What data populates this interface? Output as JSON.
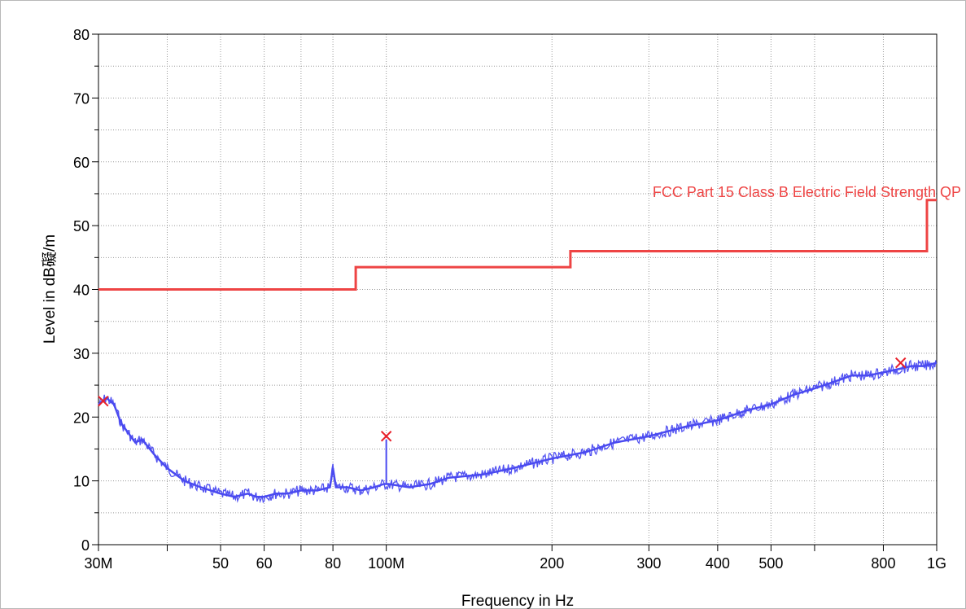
{
  "chart_data": {
    "type": "line",
    "xlabel": "Frequency in Hz",
    "ylabel": "Level in dB礙/m",
    "x_scale": "log",
    "xlim": [
      30000000,
      1000000000
    ],
    "ylim": [
      0,
      80
    ],
    "grid": true,
    "x_ticks": [
      {
        "value": 30000000,
        "label": "30M"
      },
      {
        "value": 40000000,
        "label": ""
      },
      {
        "value": 50000000,
        "label": "50"
      },
      {
        "value": 60000000,
        "label": "60"
      },
      {
        "value": 70000000,
        "label": ""
      },
      {
        "value": 80000000,
        "label": "80"
      },
      {
        "value": 100000000,
        "label": "100M"
      },
      {
        "value": 200000000,
        "label": "200"
      },
      {
        "value": 300000000,
        "label": "300"
      },
      {
        "value": 400000000,
        "label": "400"
      },
      {
        "value": 500000000,
        "label": "500"
      },
      {
        "value": 600000000,
        "label": ""
      },
      {
        "value": 800000000,
        "label": "800"
      },
      {
        "value": 1000000000,
        "label": "1G"
      }
    ],
    "y_ticks": [
      0,
      10,
      20,
      30,
      40,
      50,
      60,
      70,
      80
    ],
    "limit_line": {
      "name": "FCC Part 15 Class B Electric Field Strength QP",
      "color": "#ee4444",
      "steps": [
        {
          "x_start": 30000000,
          "x_end": 88000000,
          "y": 40
        },
        {
          "x_start": 88000000,
          "x_end": 216000000,
          "y": 43.5
        },
        {
          "x_start": 216000000,
          "x_end": 960000000,
          "y": 46
        },
        {
          "x_start": 960000000,
          "x_end": 1000000000,
          "y": 54
        }
      ]
    },
    "series": [
      {
        "color": "#4a4af0",
        "x": [
          30000000,
          31000000,
          32000000,
          33000000,
          35000000,
          36000000,
          38000000,
          40000000,
          43000000,
          46000000,
          50000000,
          53000000,
          56000000,
          58000000,
          60000000,
          63000000,
          66000000,
          70000000,
          75000000,
          79000000,
          80000000,
          81000000,
          85000000,
          90000000,
          95000000,
          99000000,
          100000000,
          101000000,
          110000000,
          120000000,
          130000000,
          150000000,
          170000000,
          200000000,
          230000000,
          260000000,
          300000000,
          350000000,
          400000000,
          450000000,
          500000000,
          550000000,
          600000000,
          650000000,
          700000000,
          750000000,
          800000000,
          850000000,
          900000000,
          950000000,
          1000000000
        ],
        "y": [
          22,
          23,
          22,
          19,
          16,
          16.5,
          14,
          12,
          10,
          9,
          8,
          7.5,
          8,
          7.5,
          7.5,
          8,
          8,
          8.5,
          8.5,
          9,
          12,
          9,
          9,
          8.5,
          9,
          9.5,
          9.5,
          9.5,
          9,
          9.5,
          10.5,
          11,
          12,
          13.5,
          14.5,
          16,
          17,
          18.5,
          19.5,
          21,
          22,
          23.5,
          24.5,
          25.5,
          26.5,
          26.5,
          27,
          27.5,
          28,
          28,
          28.5
        ]
      }
    ],
    "markers": [
      {
        "x": 30600000,
        "y": 22.5
      },
      {
        "x": 100000000,
        "y": 17
      },
      {
        "x": 860000000,
        "y": 28.5
      }
    ]
  }
}
